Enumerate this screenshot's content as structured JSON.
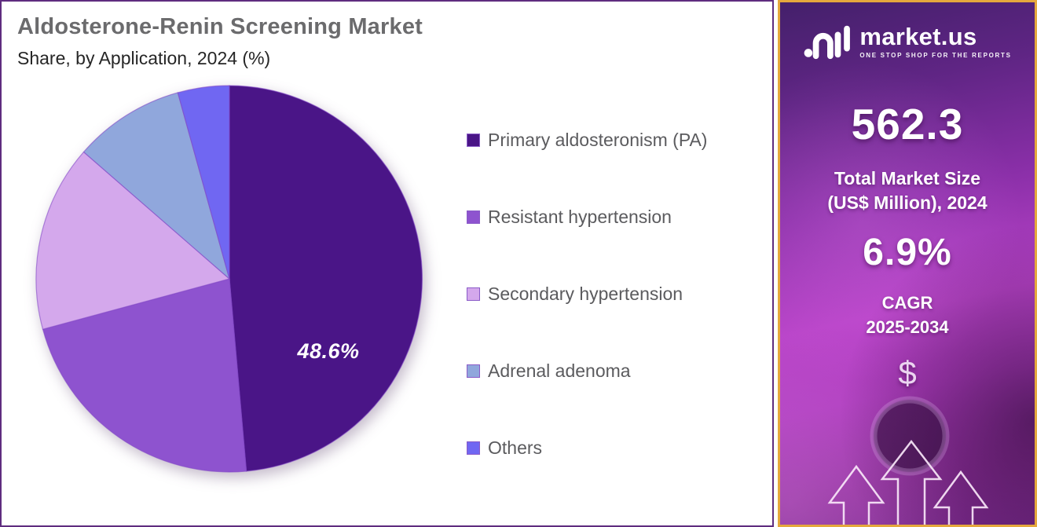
{
  "header": {
    "title": "Aldosterone-Renin Screening Market",
    "subtitle": "Share, by Application, 2024 (%)"
  },
  "chart_data": {
    "type": "pie",
    "title": "Aldosterone-Renin Screening Market Share, by Application, 2024 (%)",
    "unit": "%",
    "start_angle_deg": 0,
    "direction": "clockwise",
    "legend_position": "right",
    "slices": [
      {
        "name": "Primary aldosteronism (PA)",
        "value": 48.6,
        "label": "48.6%",
        "color": "#4A1587"
      },
      {
        "name": "Resistant hypertension",
        "value": 22.2,
        "label": "",
        "color": "#8E53CF"
      },
      {
        "name": "Secondary hypertension",
        "value": 15.6,
        "label": "",
        "color": "#D4A8EC"
      },
      {
        "name": "Adrenal adenoma",
        "value": 9.3,
        "label": "",
        "color": "#90A7DC"
      },
      {
        "name": "Others",
        "value": 4.3,
        "label": "",
        "color": "#7067F2"
      }
    ]
  },
  "sidebar": {
    "logo": {
      "brand": "market.us",
      "tagline": "ONE STOP SHOP FOR THE REPORTS"
    },
    "market_size_value": "562.3",
    "market_size_label_line1": "Total Market Size",
    "market_size_label_line2": "(US$ Million), 2024",
    "cagr_value": "6.9%",
    "cagr_label_line1": "CAGR",
    "cagr_label_line2": "2025-2034",
    "dollar_symbol": "$"
  },
  "colors": {
    "chart_panel_border": "#5F2C7F",
    "sidebar_border": "#E5A83D",
    "sidebar_magenta": "#B843C8",
    "title_gray": "#6B6B6D",
    "legend_text_gray": "#5B5B5E"
  }
}
